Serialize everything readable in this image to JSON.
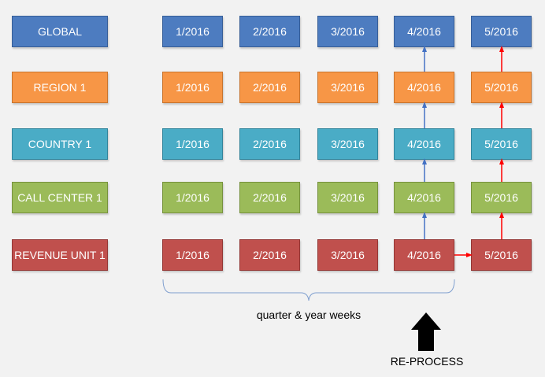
{
  "levels": [
    {
      "label": "GLOBAL",
      "color": "#4d7cc0"
    },
    {
      "label": "REGION 1",
      "color": "#f79646"
    },
    {
      "label": "COUNTRY 1",
      "color": "#4aacc6"
    },
    {
      "label": "CALL CENTER 1",
      "color": "#9bbb59"
    },
    {
      "label": "REVENUE UNIT 1",
      "color": "#c0504d"
    }
  ],
  "periods": [
    "1/2016",
    "2/2016",
    "3/2016",
    "4/2016",
    "5/2016"
  ],
  "captions": {
    "weeks": "quarter & year weeks",
    "reprocess": "RE-PROCESS"
  },
  "colors": {
    "blue_arrow": "#4472c4",
    "red_arrow": "#ff0000",
    "brace": "#7f9fcf",
    "big_arrow": "#000000"
  }
}
